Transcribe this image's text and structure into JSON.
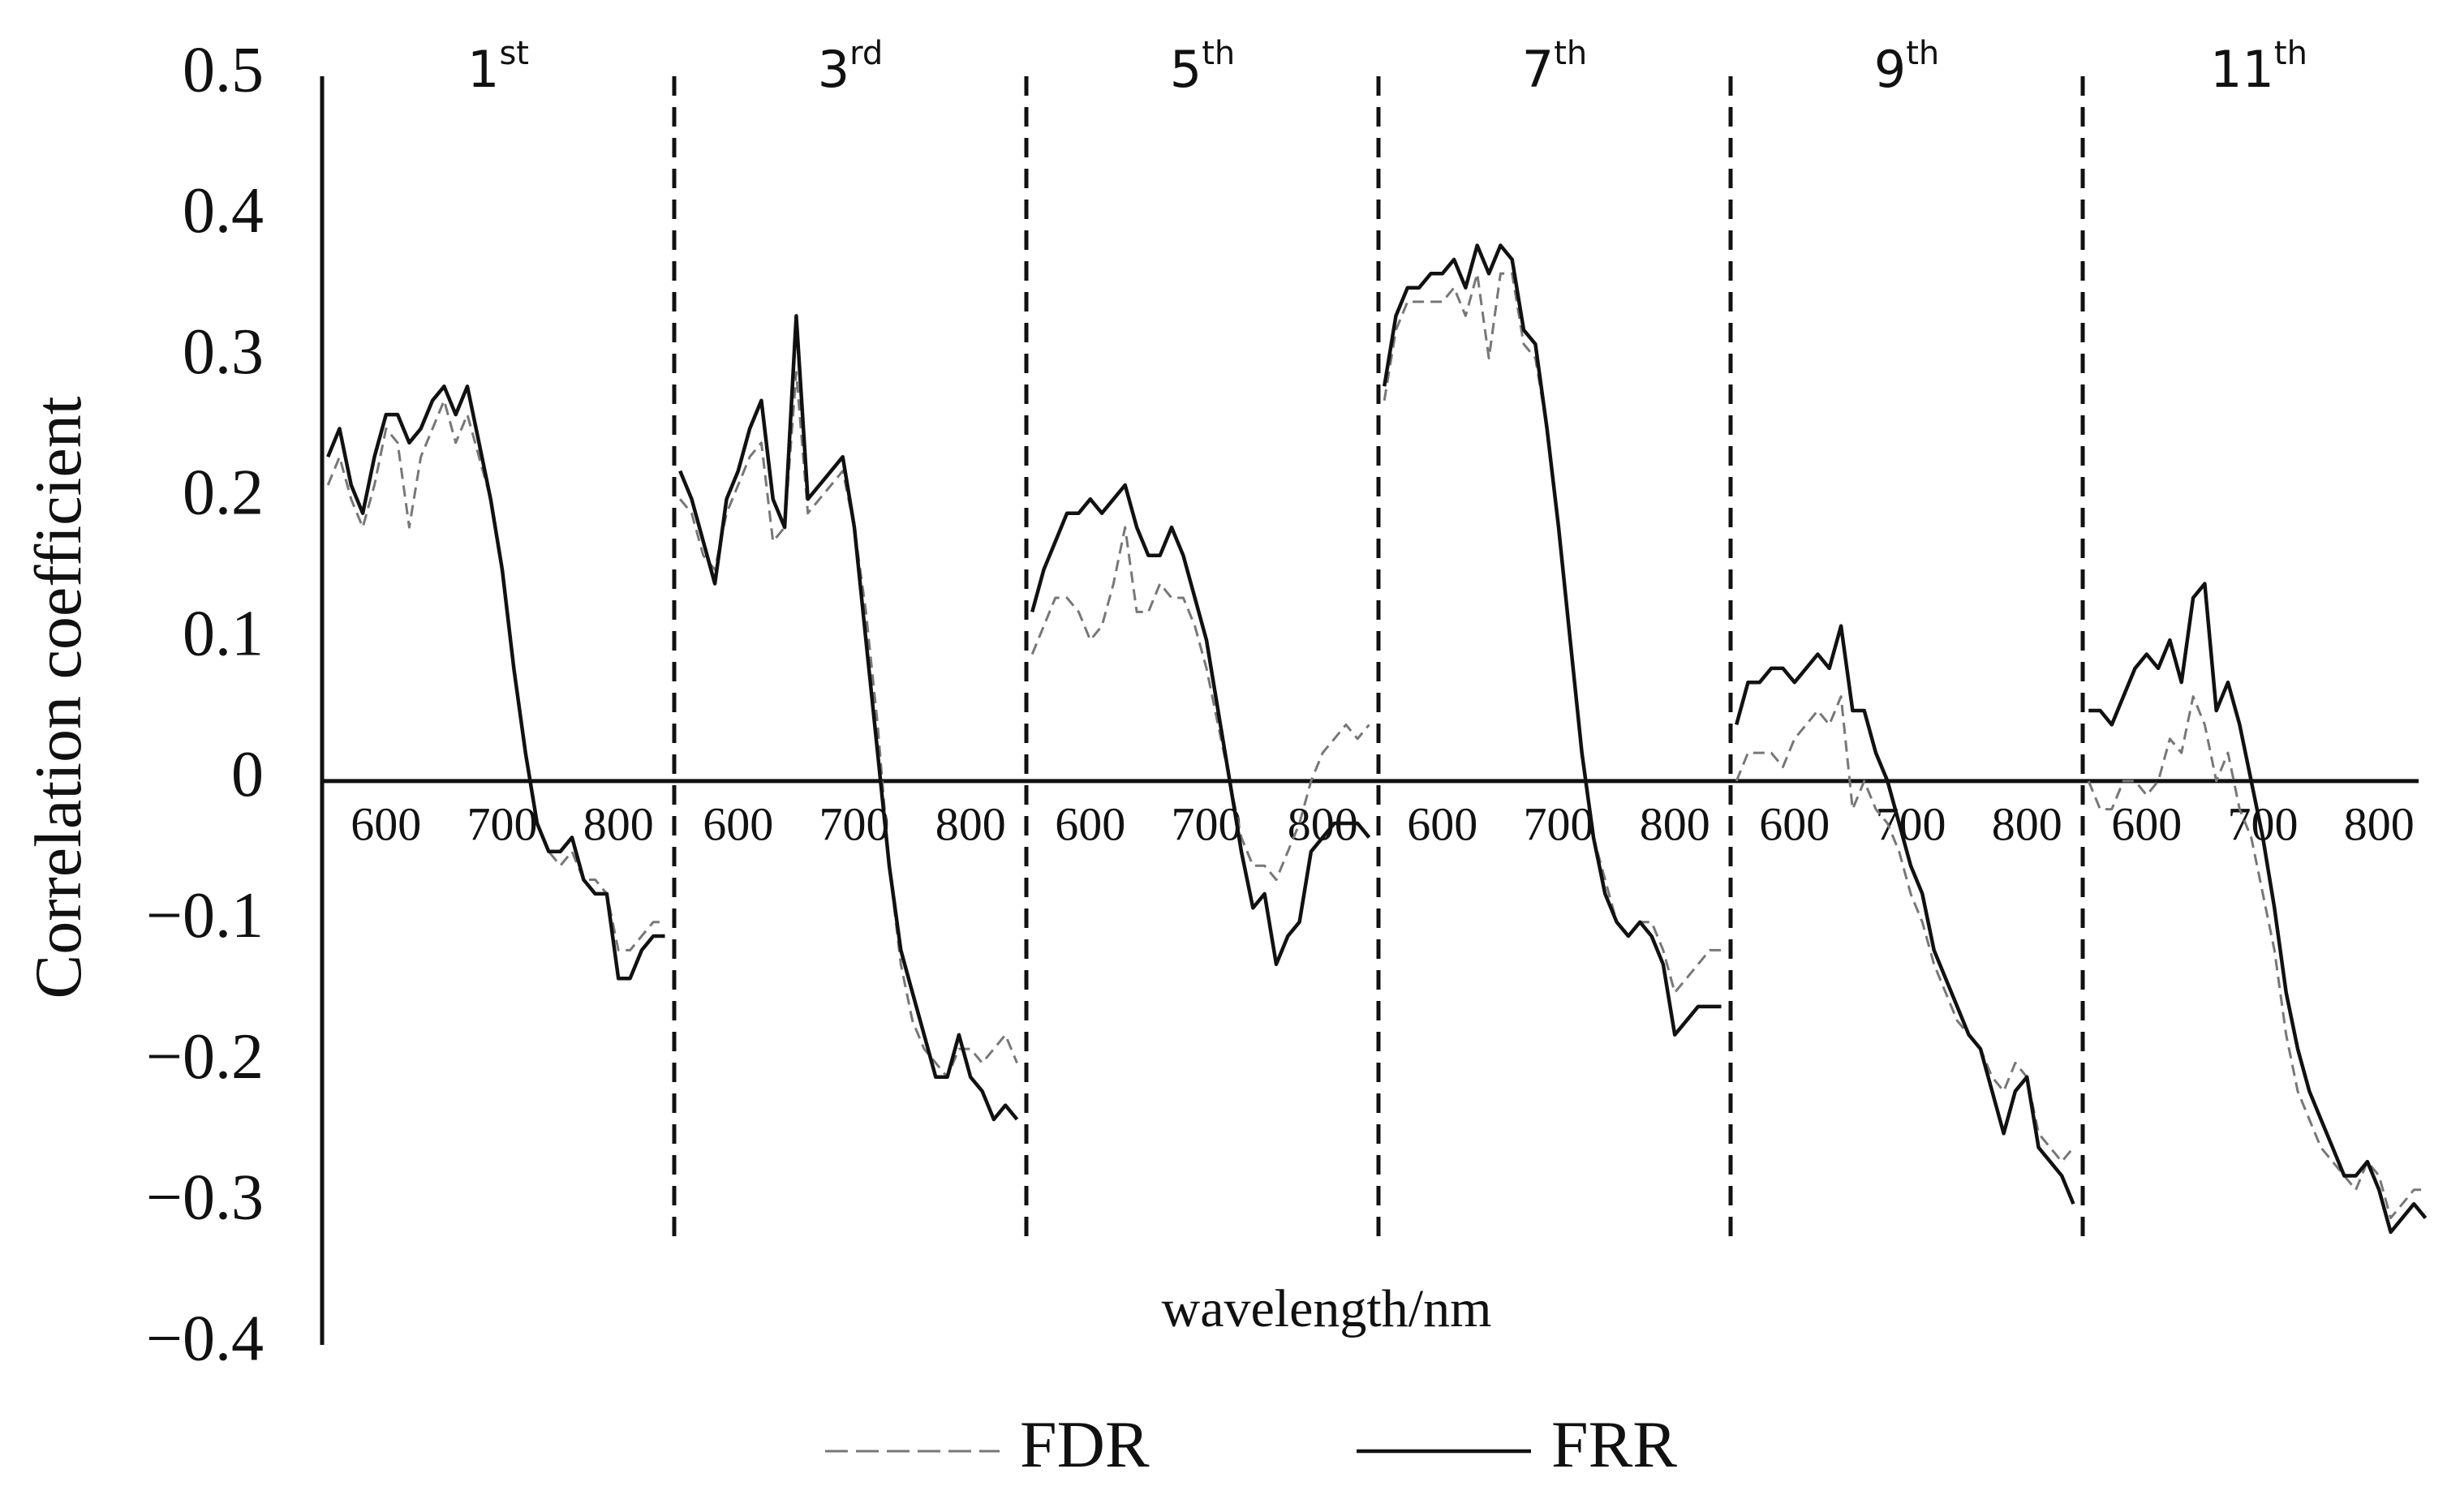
{
  "chart_data": {
    "type": "line",
    "y_label": "Correlation coefficient",
    "x_label": "wavelength/nm",
    "ylim": [
      -0.4,
      0.5
    ],
    "yticks": [
      0.5,
      0.4,
      0.3,
      0.2,
      0.1,
      0,
      {
        "value": -0.1,
        "label": "−0.1"
      },
      {
        "value": -0.2,
        "label": "−0.2"
      },
      {
        "value": -0.3,
        "label": "−0.3"
      },
      {
        "value": -0.4,
        "label": "−0.4"
      }
    ],
    "legend": "bottom",
    "panels": [
      {
        "label": "1",
        "sup": "st",
        "xlim": [
          545,
          848
        ],
        "xticks": [
          600,
          700,
          800
        ],
        "x": [
          550,
          560,
          570,
          580,
          590,
          600,
          610,
          620,
          630,
          640,
          650,
          660,
          670,
          680,
          690,
          700,
          710,
          720,
          730,
          740,
          750,
          760,
          770,
          780,
          790,
          800,
          810,
          820,
          830,
          840
        ],
        "series": [
          {
            "name": "FDR",
            "color": "#777777",
            "dashed": true,
            "values": [
              0.21,
              0.23,
              0.2,
              0.18,
              0.21,
              0.25,
              0.24,
              0.18,
              0.23,
              0.25,
              0.27,
              0.24,
              0.26,
              0.23,
              0.2,
              0.15,
              0.08,
              0.02,
              -0.03,
              -0.05,
              -0.06,
              -0.05,
              -0.07,
              -0.07,
              -0.08,
              -0.12,
              -0.12,
              -0.11,
              -0.1,
              -0.1
            ]
          },
          {
            "name": "FRR",
            "color": "#111111",
            "dashed": false,
            "values": [
              0.23,
              0.25,
              0.21,
              0.19,
              0.23,
              0.26,
              0.26,
              0.24,
              0.25,
              0.27,
              0.28,
              0.26,
              0.28,
              0.24,
              0.2,
              0.15,
              0.08,
              0.02,
              -0.03,
              -0.05,
              -0.05,
              -0.04,
              -0.07,
              -0.08,
              -0.08,
              -0.14,
              -0.14,
              -0.12,
              -0.11,
              -0.11
            ]
          }
        ]
      },
      {
        "label": "3",
        "sup": "rd",
        "xlim": [
          545,
          848
        ],
        "xticks": [
          600,
          700,
          800
        ],
        "x": [
          550,
          560,
          570,
          580,
          590,
          600,
          610,
          620,
          630,
          640,
          650,
          660,
          670,
          680,
          690,
          700,
          710,
          720,
          730,
          740,
          750,
          760,
          770,
          780,
          790,
          800,
          810,
          820,
          830,
          840
        ],
        "series": [
          {
            "name": "FDR",
            "color": "#777777",
            "dashed": true,
            "values": [
              0.2,
              0.19,
              0.16,
              0.15,
              0.19,
              0.21,
              0.23,
              0.24,
              0.17,
              0.18,
              0.29,
              0.19,
              0.2,
              0.21,
              0.22,
              0.18,
              0.12,
              0.04,
              -0.06,
              -0.13,
              -0.17,
              -0.19,
              -0.2,
              -0.21,
              -0.19,
              -0.19,
              -0.2,
              -0.19,
              -0.18,
              -0.2
            ]
          },
          {
            "name": "FRR",
            "color": "#111111",
            "dashed": false,
            "values": [
              0.22,
              0.2,
              0.17,
              0.14,
              0.2,
              0.22,
              0.25,
              0.27,
              0.2,
              0.18,
              0.33,
              0.2,
              0.21,
              0.22,
              0.23,
              0.18,
              0.1,
              0.02,
              -0.06,
              -0.12,
              -0.15,
              -0.18,
              -0.21,
              -0.21,
              -0.18,
              -0.21,
              -0.22,
              -0.24,
              -0.23,
              -0.24
            ]
          }
        ]
      },
      {
        "label": "5",
        "sup": "th",
        "xlim": [
          545,
          848
        ],
        "xticks": [
          600,
          700,
          800
        ],
        "x": [
          550,
          560,
          570,
          580,
          590,
          600,
          610,
          620,
          630,
          640,
          650,
          660,
          670,
          680,
          690,
          700,
          710,
          720,
          730,
          740,
          750,
          760,
          770,
          780,
          790,
          800,
          810,
          820,
          830,
          840
        ],
        "series": [
          {
            "name": "FDR",
            "color": "#777777",
            "dashed": true,
            "values": [
              0.09,
              0.11,
              0.13,
              0.13,
              0.12,
              0.1,
              0.11,
              0.14,
              0.18,
              0.12,
              0.12,
              0.14,
              0.13,
              0.13,
              0.11,
              0.08,
              0.04,
              0.0,
              -0.04,
              -0.06,
              -0.06,
              -0.07,
              -0.05,
              -0.03,
              0.0,
              0.02,
              0.03,
              0.04,
              0.03,
              0.04
            ]
          },
          {
            "name": "FRR",
            "color": "#111111",
            "dashed": false,
            "values": [
              0.12,
              0.15,
              0.17,
              0.19,
              0.19,
              0.2,
              0.19,
              0.2,
              0.21,
              0.18,
              0.16,
              0.16,
              0.18,
              0.16,
              0.13,
              0.1,
              0.05,
              0.0,
              -0.05,
              -0.09,
              -0.08,
              -0.13,
              -0.11,
              -0.1,
              -0.05,
              -0.04,
              -0.03,
              -0.03,
              -0.03,
              -0.04
            ]
          }
        ]
      },
      {
        "label": "7",
        "sup": "th",
        "xlim": [
          545,
          848
        ],
        "xticks": [
          600,
          700,
          800
        ],
        "x": [
          550,
          560,
          570,
          580,
          590,
          600,
          610,
          620,
          630,
          640,
          650,
          660,
          670,
          680,
          690,
          700,
          710,
          720,
          730,
          740,
          750,
          760,
          770,
          780,
          790,
          800,
          810,
          820,
          830,
          840
        ],
        "series": [
          {
            "name": "FDR",
            "color": "#777777",
            "dashed": true,
            "values": [
              0.27,
              0.32,
              0.34,
              0.34,
              0.34,
              0.34,
              0.35,
              0.33,
              0.36,
              0.3,
              0.36,
              0.36,
              0.31,
              0.3,
              0.25,
              0.18,
              0.1,
              0.02,
              -0.04,
              -0.07,
              -0.1,
              -0.11,
              -0.1,
              -0.1,
              -0.12,
              -0.15,
              -0.14,
              -0.13,
              -0.12,
              -0.12
            ]
          },
          {
            "name": "FRR",
            "color": "#111111",
            "dashed": false,
            "values": [
              0.28,
              0.33,
              0.35,
              0.35,
              0.36,
              0.36,
              0.37,
              0.35,
              0.38,
              0.36,
              0.38,
              0.37,
              0.32,
              0.31,
              0.25,
              0.18,
              0.1,
              0.02,
              -0.04,
              -0.08,
              -0.1,
              -0.11,
              -0.1,
              -0.11,
              -0.13,
              -0.18,
              -0.17,
              -0.16,
              -0.16,
              -0.16
            ]
          }
        ]
      },
      {
        "label": "9",
        "sup": "th",
        "xlim": [
          545,
          848
        ],
        "xticks": [
          600,
          700,
          800
        ],
        "x": [
          550,
          560,
          570,
          580,
          590,
          600,
          610,
          620,
          630,
          640,
          650,
          660,
          670,
          680,
          690,
          700,
          710,
          720,
          730,
          740,
          750,
          760,
          770,
          780,
          790,
          800,
          810,
          820,
          830,
          840
        ],
        "series": [
          {
            "name": "FDR",
            "color": "#777777",
            "dashed": true,
            "values": [
              0.0,
              0.02,
              0.02,
              0.02,
              0.01,
              0.03,
              0.04,
              0.05,
              0.04,
              0.06,
              -0.02,
              0.0,
              -0.02,
              -0.03,
              -0.05,
              -0.08,
              -0.1,
              -0.13,
              -0.15,
              -0.17,
              -0.18,
              -0.19,
              -0.21,
              -0.22,
              -0.2,
              -0.21,
              -0.25,
              -0.26,
              -0.27,
              -0.26
            ]
          },
          {
            "name": "FRR",
            "color": "#111111",
            "dashed": false,
            "values": [
              0.04,
              0.07,
              0.07,
              0.08,
              0.08,
              0.07,
              0.08,
              0.09,
              0.08,
              0.11,
              0.05,
              0.05,
              0.02,
              0.0,
              -0.03,
              -0.06,
              -0.08,
              -0.12,
              -0.14,
              -0.16,
              -0.18,
              -0.19,
              -0.22,
              -0.25,
              -0.22,
              -0.21,
              -0.26,
              -0.27,
              -0.28,
              -0.3
            ]
          }
        ]
      },
      {
        "label": "11",
        "sup": "th",
        "xlim": [
          545,
          848
        ],
        "xticks": [
          600,
          700,
          800
        ],
        "x": [
          550,
          560,
          570,
          580,
          590,
          600,
          610,
          620,
          630,
          640,
          650,
          660,
          670,
          680,
          690,
          700,
          710,
          720,
          730,
          740,
          750,
          760,
          770,
          780,
          790,
          800,
          810,
          820,
          830,
          840
        ],
        "series": [
          {
            "name": "FDR",
            "color": "#777777",
            "dashed": true,
            "values": [
              0.0,
              -0.02,
              -0.02,
              0.0,
              0.0,
              -0.01,
              0.0,
              0.03,
              0.02,
              0.06,
              0.04,
              0.0,
              0.02,
              -0.02,
              -0.04,
              -0.08,
              -0.12,
              -0.18,
              -0.22,
              -0.24,
              -0.26,
              -0.27,
              -0.28,
              -0.29,
              -0.27,
              -0.28,
              -0.31,
              -0.3,
              -0.29,
              -0.29
            ]
          },
          {
            "name": "FRR",
            "color": "#111111",
            "dashed": false,
            "values": [
              0.05,
              0.05,
              0.04,
              0.06,
              0.08,
              0.09,
              0.08,
              0.1,
              0.07,
              0.13,
              0.14,
              0.05,
              0.07,
              0.04,
              0.0,
              -0.04,
              -0.09,
              -0.15,
              -0.19,
              -0.22,
              -0.24,
              -0.26,
              -0.28,
              -0.28,
              -0.27,
              -0.29,
              -0.32,
              -0.31,
              -0.3,
              -0.31
            ]
          }
        ]
      }
    ]
  }
}
